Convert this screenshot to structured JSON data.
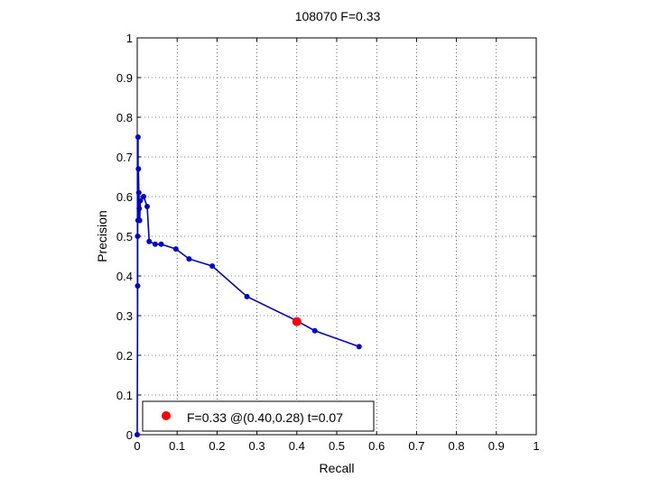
{
  "chart_data": {
    "type": "line",
    "title": "108070 F=0.33",
    "xlabel": "Recall",
    "ylabel": "Precision",
    "xlim": [
      0,
      1
    ],
    "ylim": [
      0,
      1
    ],
    "xticks": [
      "0",
      "0.1",
      "0.2",
      "0.3",
      "0.4",
      "0.5",
      "0.6",
      "0.7",
      "0.8",
      "0.9",
      "1"
    ],
    "yticks": [
      "0",
      "0.1",
      "0.2",
      "0.3",
      "0.4",
      "0.5",
      "0.6",
      "0.7",
      "0.8",
      "0.9",
      "1"
    ],
    "grid": true,
    "grid_style": "dotted",
    "series": [
      {
        "color": "#0000cc",
        "points": [
          {
            "x": 0.0,
            "y": 0.0
          },
          {
            "x": 0.001,
            "y": 0.375
          },
          {
            "x": 0.001,
            "y": 0.5
          },
          {
            "x": 0.002,
            "y": 0.75
          },
          {
            "x": 0.002,
            "y": 0.54
          },
          {
            "x": 0.003,
            "y": 0.67
          },
          {
            "x": 0.004,
            "y": 0.61
          },
          {
            "x": 0.005,
            "y": 0.57
          },
          {
            "x": 0.006,
            "y": 0.54
          },
          {
            "x": 0.008,
            "y": 0.59
          },
          {
            "x": 0.016,
            "y": 0.6
          },
          {
            "x": 0.025,
            "y": 0.575
          },
          {
            "x": 0.03,
            "y": 0.487
          },
          {
            "x": 0.045,
            "y": 0.48
          },
          {
            "x": 0.06,
            "y": 0.48
          },
          {
            "x": 0.097,
            "y": 0.468
          },
          {
            "x": 0.13,
            "y": 0.443
          },
          {
            "x": 0.188,
            "y": 0.425
          },
          {
            "x": 0.275,
            "y": 0.348
          },
          {
            "x": 0.398,
            "y": 0.288
          },
          {
            "x": 0.445,
            "y": 0.262
          },
          {
            "x": 0.556,
            "y": 0.222
          }
        ]
      }
    ],
    "highlight": {
      "x": 0.4,
      "y": 0.285,
      "color": "#ff0000"
    },
    "legend": {
      "label": "F=0.33 @(0.40,0.28) t=0.07",
      "placement": "bottom-left",
      "marker_color": "#ff0000"
    }
  }
}
